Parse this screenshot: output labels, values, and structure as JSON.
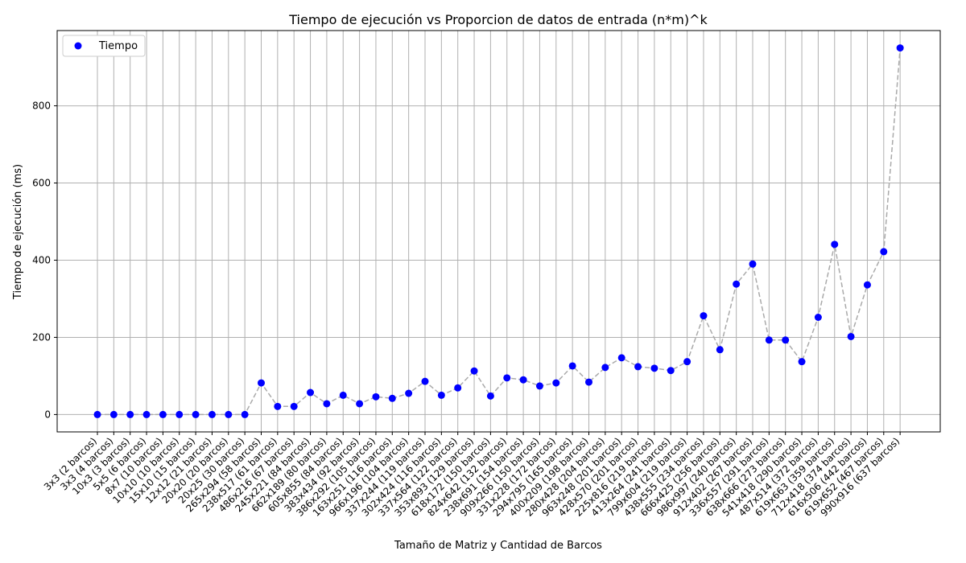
{
  "chart_data": {
    "type": "scatter",
    "title": "Tiempo de ejecución vs Proporcion de datos de entrada (n*m)^k",
    "xlabel": "Tamaño de Matriz y Cantidad de Barcos",
    "ylabel": "Tiempo de ejecución (ms)",
    "ylim": [
      -45,
      995
    ],
    "yticks": [
      0,
      200,
      400,
      600,
      800
    ],
    "grid": true,
    "legend": {
      "position": "upper-left",
      "label": "Tiempo"
    },
    "colors": {
      "points": "#0000ff",
      "line": "#aaaaaa",
      "grid": "#b0b0b0"
    },
    "categories": [
      "3x3 (2 barcos)",
      "3x3 (4 barcos)",
      "10x3 (3 barcos)",
      "5x5 (6 barcos)",
      "8x7 (10 barcos)",
      "10x10 (10 barcos)",
      "15x10 (15 barcos)",
      "12x12 (21 barcos)",
      "20x20 (20 barcos)",
      "20x25 (30 barcos)",
      "265x294 (58 barcos)",
      "238x517 (61 barcos)",
      "486x216 (67 barcos)",
      "245x221 (84 barcos)",
      "662x189 (80 barcos)",
      "605x855 (84 barcos)",
      "383x434 (92 barcos)",
      "386x292 (105 barcos)",
      "163x251 (116 barcos)",
      "966x196 (104 barcos)",
      "337x244 (119 barcos)",
      "302x424 (116 barcos)",
      "337x564 (122 barcos)",
      "353x893 (129 barcos)",
      "618x172 (150 barcos)",
      "824x642 (132 barcos)",
      "238x691 (154 barcos)",
      "909x266 (150 barcos)",
      "331x228 (172 barcos)",
      "294x795 (165 barcos)",
      "400x209 (198 barcos)",
      "280x428 (204 barcos)",
      "963x248 (201 barcos)",
      "428x570 (201 barcos)",
      "225x816 (219 barcos)",
      "413x264 (241 barcos)",
      "799x604 (219 barcos)",
      "438x555 (234 barcos)",
      "666x425 (256 barcos)",
      "986x997 (240 barcos)",
      "912x402 (267 barcos)",
      "336x557 (291 barcos)",
      "638x666 (273 barcos)",
      "541x418 (290 barcos)",
      "487x514 (372 barcos)",
      "619x663 (359 barcos)",
      "712x418 (374 barcos)",
      "616x506 (442 barcos)",
      "619x652 (467 barcos)",
      "990x916 (637 barcos)"
    ],
    "values": [
      0,
      0,
      0,
      0,
      0,
      0,
      0,
      0,
      0,
      0,
      82,
      21,
      21,
      57,
      28,
      50,
      28,
      46,
      42,
      55,
      86,
      50,
      69,
      113,
      48,
      95,
      90,
      74,
      82,
      126,
      84,
      122,
      147,
      124,
      120,
      114,
      137,
      256,
      168,
      338,
      390,
      193,
      193,
      137,
      252,
      441,
      202,
      336,
      422,
      950
    ]
  }
}
